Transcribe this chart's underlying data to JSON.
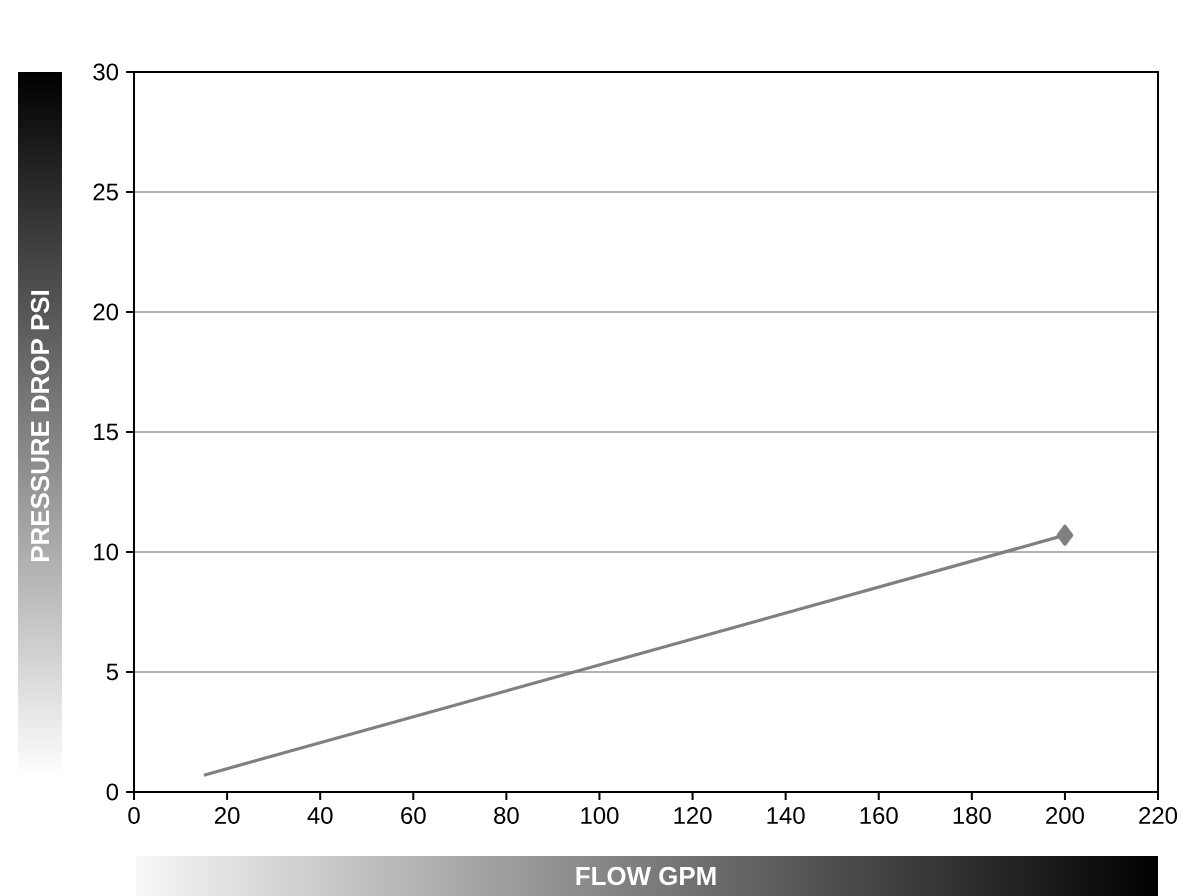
{
  "chart_data": {
    "type": "line",
    "xlabel": "FLOW GPM",
    "ylabel": "PRESSURE DROP PSI",
    "x": [
      15,
      200
    ],
    "series": [
      {
        "color": "#808080",
        "values": [
          0.7,
          10.7
        ]
      }
    ],
    "marker": "diamond",
    "grid": "y",
    "xlim": [
      0,
      220
    ],
    "xticks": [
      0,
      20,
      40,
      60,
      80,
      100,
      120,
      140,
      160,
      180,
      200,
      220
    ],
    "ylim": [
      0,
      30
    ],
    "yticks": [
      0,
      5,
      10,
      15,
      20,
      25,
      30
    ]
  }
}
